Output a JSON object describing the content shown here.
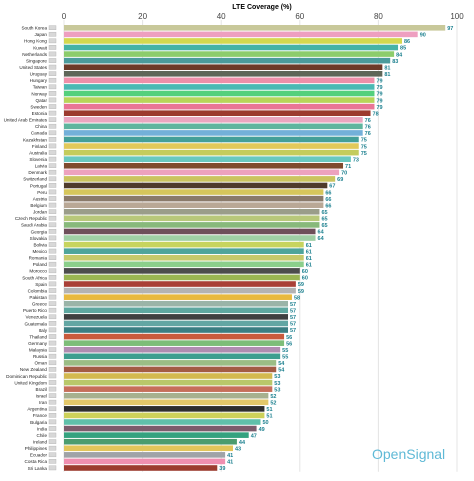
{
  "brand": "OpenSignal",
  "chart_data": {
    "type": "bar",
    "orientation": "horizontal",
    "title": "LTE Coverage (%)",
    "xlim": [
      0,
      100
    ],
    "xticks": [
      0,
      20,
      40,
      60,
      80,
      100
    ],
    "grid": true,
    "legend": "none",
    "categories": [
      "South Korea",
      "Japan",
      "Hong Kong",
      "Kuwait",
      "Netherlands",
      "Singapore",
      "United States",
      "Uruguay",
      "Hungary",
      "Taiwan",
      "Norway",
      "Qatar",
      "Sweden",
      "Estonia",
      "United Arab Emirates",
      "China",
      "Canada",
      "Kazakhstan",
      "Finland",
      "Australia",
      "Slovenia",
      "Latvia",
      "Denmark",
      "Switzerland",
      "Portugal",
      "Peru",
      "Austria",
      "Belgium",
      "Jordan",
      "Czech Republic",
      "Saudi Arabia",
      "Georgia",
      "Slovakia",
      "Bolivia",
      "Mexico",
      "Romania",
      "Poland",
      "Morocco",
      "South Africa",
      "Spain",
      "Colombia",
      "Pakistan",
      "Greece",
      "Puerto Rico",
      "Venezuela",
      "Guatemala",
      "Italy",
      "Thailand",
      "Germany",
      "Malaysia",
      "Russia",
      "Oman",
      "New Zealand",
      "Dominican Republic",
      "United Kingdom",
      "Brazil",
      "Israel",
      "Iran",
      "Argentina",
      "France",
      "Bulgaria",
      "India",
      "Chile",
      "Ireland",
      "Philippines",
      "Ecuador",
      "Costa Rica",
      "Sri Lanka"
    ],
    "values": [
      97,
      90,
      86,
      85,
      84,
      83,
      81,
      81,
      79,
      79,
      79,
      79,
      79,
      78,
      76,
      76,
      76,
      75,
      75,
      75,
      73,
      71,
      70,
      69,
      67,
      66,
      66,
      66,
      65,
      65,
      65,
      64,
      64,
      61,
      61,
      61,
      61,
      60,
      60,
      59,
      59,
      58,
      57,
      57,
      57,
      57,
      57,
      56,
      56,
      55,
      55,
      54,
      54,
      53,
      53,
      53,
      52,
      52,
      51,
      51,
      50,
      49,
      47,
      44,
      43,
      41,
      41,
      39
    ],
    "colors": [
      "#c8c89a",
      "#ee9fc0",
      "#d4d84f",
      "#46b3a6",
      "#8ccc6c",
      "#4b9b9c",
      "#6d3a29",
      "#5e6658",
      "#ee8fa9",
      "#4bb9b3",
      "#54d07c",
      "#b7d55a",
      "#e97596",
      "#9c3b2f",
      "#eaa6c0",
      "#5eb59e",
      "#73b0d9",
      "#449f99",
      "#e2c95a",
      "#c4cc5c",
      "#69c9c0",
      "#7f4b2e",
      "#eda2be",
      "#cbc45f",
      "#4f3b2c",
      "#d6c65c",
      "#8a7a6a",
      "#b9a896",
      "#9a9d8a",
      "#b8c87a",
      "#88b97b",
      "#6e4f5a",
      "#9fcfa5",
      "#c7d45e",
      "#4ea49a",
      "#c6c96a",
      "#8bcf8b",
      "#4c4c4c",
      "#9ab552",
      "#a94037",
      "#b3b3b3",
      "#e8b93f",
      "#9ab4a8",
      "#5ea7a0",
      "#3f3f40",
      "#62a6a3",
      "#3a7e82",
      "#c85a3c",
      "#7dbd78",
      "#b08cb0",
      "#3e9e8f",
      "#9bbd85",
      "#a25c44",
      "#d3b94f",
      "#b9c86a",
      "#c66f5a",
      "#a7b18f",
      "#e3c86a",
      "#2e2e2e",
      "#cdd15a",
      "#60c0aa",
      "#7c5c6c",
      "#35a27f",
      "#4b9c6f",
      "#e2c55a",
      "#a0a3a7",
      "#ef8fb0",
      "#9c3b2f"
    ]
  }
}
